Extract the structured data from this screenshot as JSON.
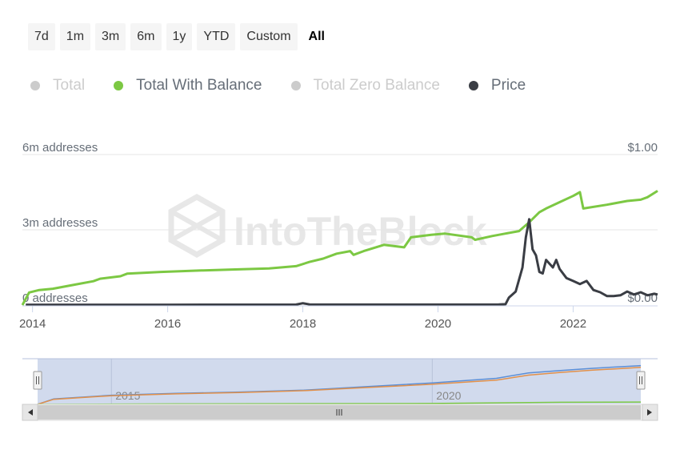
{
  "range_buttons": [
    "7d",
    "1m",
    "3m",
    "6m",
    "1y",
    "YTD",
    "Custom",
    "All"
  ],
  "active_range": "All",
  "legend": [
    {
      "label": "Total",
      "color": "#cccccc",
      "enabled": false
    },
    {
      "label": "Total With Balance",
      "color": "#7cc843",
      "enabled": true
    },
    {
      "label": "Total Zero Balance",
      "color": "#cccccc",
      "enabled": false
    },
    {
      "label": "Price",
      "color": "#3a3d44",
      "enabled": true
    }
  ],
  "watermark": "IntoTheBlock",
  "chart_data": {
    "type": "line",
    "title": "",
    "x_tick_labels": [
      "2014",
      "2016",
      "2018",
      "2020",
      "2022"
    ],
    "xlim": [
      2013.85,
      2023.25
    ],
    "y_left": {
      "ticks": [
        "6m addresses",
        "3m addresses",
        "0 addresses"
      ],
      "ylim": [
        0,
        6000000
      ]
    },
    "y_right": {
      "ticks": [
        "$1.00",
        "$0.00"
      ],
      "ylim": [
        0,
        1.0
      ]
    },
    "grid": true,
    "legend_position": "top-left",
    "series": [
      {
        "name": "Total With Balance",
        "axis": "left",
        "color": "#7cc843",
        "x": [
          2013.85,
          2013.95,
          2014.1,
          2014.3,
          2014.6,
          2014.9,
          2015.0,
          2015.3,
          2015.4,
          2015.9,
          2016.5,
          2017.0,
          2017.5,
          2017.9,
          2018.1,
          2018.3,
          2018.5,
          2018.7,
          2018.75,
          2018.9,
          2019.2,
          2019.5,
          2019.6,
          2019.9,
          2020.1,
          2020.5,
          2020.55,
          2020.8,
          2021.0,
          2021.2,
          2021.35,
          2021.5,
          2021.6,
          2021.8,
          2022.0,
          2022.1,
          2022.15,
          2022.5,
          2022.8,
          2023.0,
          2023.1,
          2023.25
        ],
        "values": [
          0.0,
          500000,
          600000,
          650000,
          800000,
          950000,
          1050000,
          1150000,
          1250000,
          1320000,
          1380000,
          1420000,
          1460000,
          1550000,
          1720000,
          1850000,
          2050000,
          2150000,
          2000000,
          2150000,
          2400000,
          2300000,
          2700000,
          2800000,
          2850000,
          2700000,
          2600000,
          2750000,
          2850000,
          2950000,
          3300000,
          3700000,
          3850000,
          4100000,
          4350000,
          4500000,
          3850000,
          4000000,
          4150000,
          4200000,
          4300000,
          4550000
        ]
      },
      {
        "name": "Price",
        "axis": "right",
        "color": "#3a3d44",
        "x": [
          2013.9,
          2014.5,
          2016.0,
          2017.9,
          2018.0,
          2018.1,
          2018.5,
          2019.5,
          2020.5,
          2020.9,
          2021.0,
          2021.05,
          2021.15,
          2021.25,
          2021.3,
          2021.35,
          2021.4,
          2021.45,
          2021.5,
          2021.55,
          2021.6,
          2021.7,
          2021.75,
          2021.8,
          2021.9,
          2022.0,
          2022.1,
          2022.2,
          2022.3,
          2022.4,
          2022.5,
          2022.6,
          2022.7,
          2022.8,
          2022.9,
          2023.0,
          2023.1,
          2023.2,
          2023.25
        ],
        "values": [
          0.002,
          0.002,
          0.002,
          0.003,
          0.012,
          0.004,
          0.003,
          0.003,
          0.003,
          0.004,
          0.006,
          0.05,
          0.09,
          0.25,
          0.45,
          0.57,
          0.37,
          0.33,
          0.22,
          0.21,
          0.3,
          0.25,
          0.3,
          0.24,
          0.18,
          0.16,
          0.14,
          0.16,
          0.1,
          0.085,
          0.06,
          0.06,
          0.065,
          0.09,
          0.07,
          0.085,
          0.065,
          0.075,
          0.07
        ]
      }
    ],
    "navigator": {
      "tick_labels": [
        "2015",
        "2020"
      ],
      "series": [
        {
          "color": "#5b8ed6",
          "x": [
            2013.85,
            2014.1,
            2015.0,
            2016.0,
            2017.0,
            2018.0,
            2019.0,
            2020.0,
            2021.0,
            2021.5,
            2022.0,
            2022.5,
            2023.0,
            2023.25
          ],
          "values": [
            0.0,
            0.12,
            0.2,
            0.24,
            0.27,
            0.31,
            0.39,
            0.47,
            0.57,
            0.69,
            0.74,
            0.79,
            0.83,
            0.85
          ]
        },
        {
          "color": "#e2904a",
          "x": [
            2013.85,
            2014.1,
            2015.0,
            2016.0,
            2017.0,
            2018.0,
            2019.0,
            2020.0,
            2021.0,
            2021.5,
            2022.0,
            2022.5,
            2023.0,
            2023.25
          ],
          "values": [
            0.0,
            0.11,
            0.19,
            0.23,
            0.26,
            0.3,
            0.37,
            0.44,
            0.53,
            0.64,
            0.7,
            0.75,
            0.79,
            0.81
          ]
        },
        {
          "color": "#7cc843",
          "x": [
            2013.85,
            2016.0,
            2018.0,
            2020.0,
            2022.0,
            2023.25
          ],
          "values": [
            0.0,
            0.01,
            0.015,
            0.02,
            0.045,
            0.05
          ]
        }
      ]
    }
  }
}
